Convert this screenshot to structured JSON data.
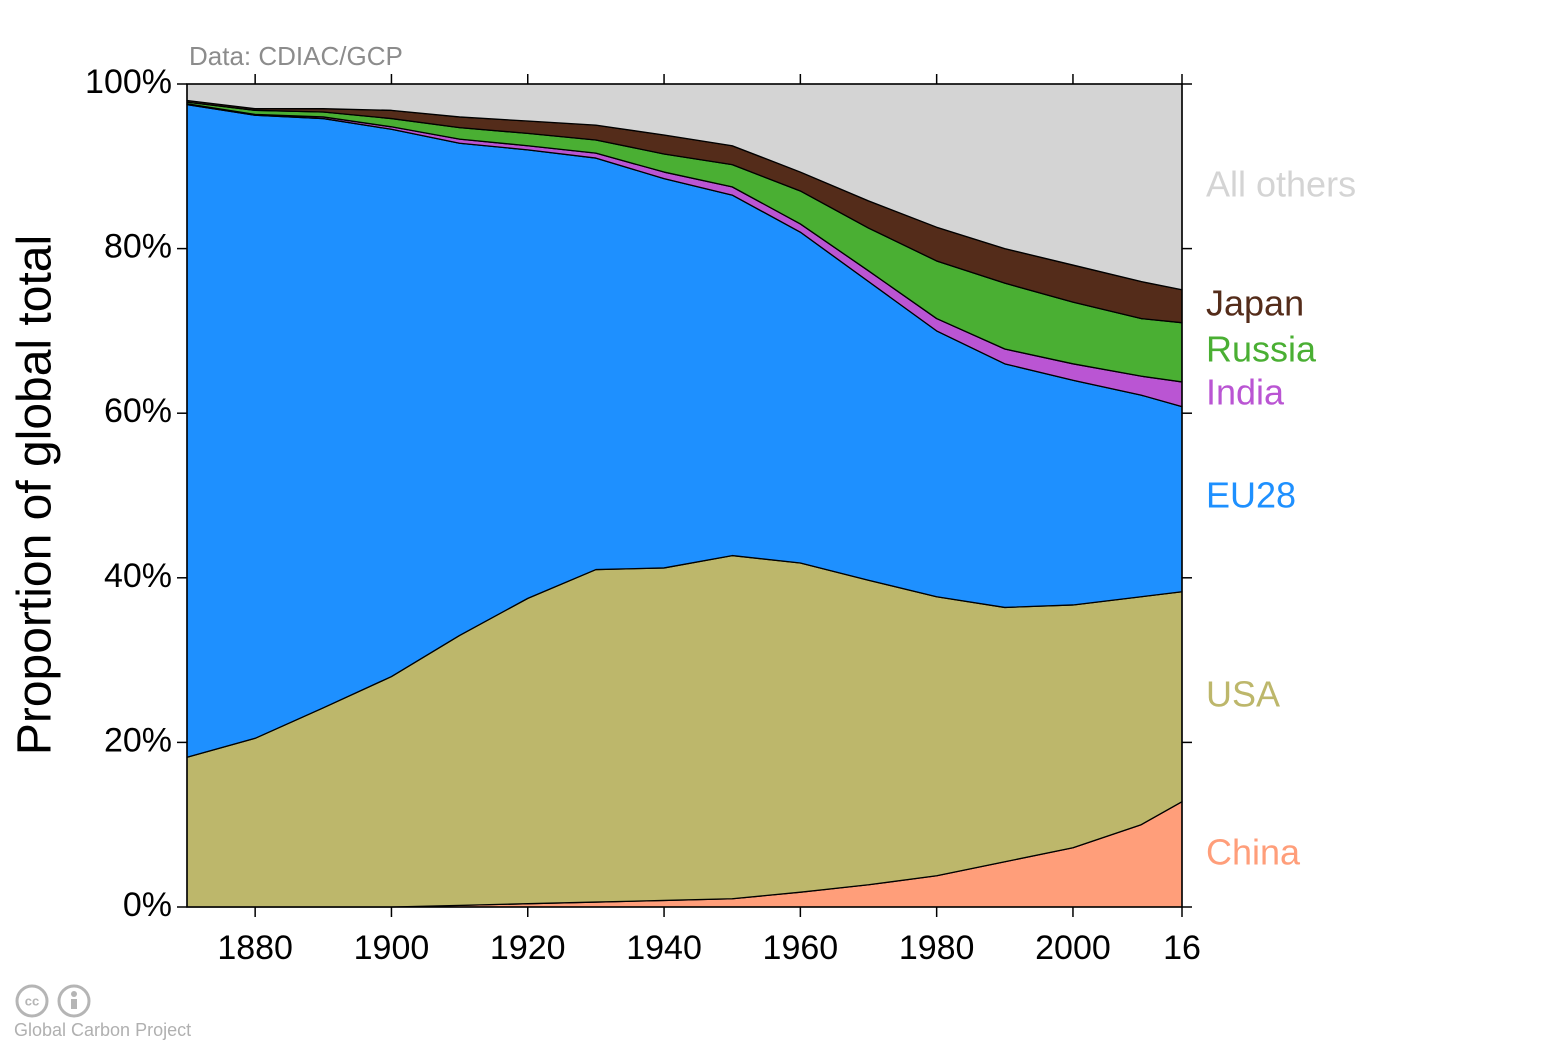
{
  "chart_data": {
    "type": "stacked-area",
    "note": "Data: CDIAC/GCP",
    "ylabel": "Proportion of global total",
    "credit": "Global Carbon Project",
    "x": [
      1870,
      1880,
      1890,
      1900,
      1910,
      1920,
      1930,
      1940,
      1950,
      1960,
      1970,
      1980,
      1990,
      2000,
      2010,
      2016
    ],
    "xlim": [
      1870,
      2016
    ],
    "xticks": [
      1880,
      1900,
      1920,
      1940,
      1960,
      1980,
      2000,
      {
        "value": 2016,
        "label": "16"
      }
    ],
    "ylim": [
      0,
      100
    ],
    "yticks": [
      {
        "value": 0,
        "label": "0%"
      },
      {
        "value": 20,
        "label": "20%"
      },
      {
        "value": 40,
        "label": "40%"
      },
      {
        "value": 60,
        "label": "60%"
      },
      {
        "value": 80,
        "label": "80%"
      },
      {
        "value": 100,
        "label": "100%"
      }
    ],
    "series": [
      {
        "name": "China",
        "color": "#ff9e7a",
        "values": [
          0,
          0,
          0,
          0,
          0.2,
          0.4,
          0.6,
          0.8,
          1.0,
          1.8,
          2.7,
          3.8,
          5.5,
          7.2,
          10,
          12.8
        ]
      },
      {
        "name": "USA",
        "color": "#bdb76b",
        "values": [
          18.2,
          20.5,
          24.2,
          28,
          32.8,
          37.1,
          40.4,
          40.4,
          41.7,
          40,
          37,
          33.9,
          30.9,
          29.5,
          27.7,
          25.5
        ]
      },
      {
        "name": "EU28",
        "color": "#1e90ff",
        "values": [
          79.3,
          75.7,
          71.6,
          66.5,
          59.8,
          54.5,
          50,
          47.3,
          43.8,
          40.2,
          36.3,
          32.3,
          29.6,
          27.3,
          24.5,
          22.5
        ]
      },
      {
        "name": "India",
        "color": "#ba55d3",
        "values": [
          0.1,
          0.1,
          0.2,
          0.3,
          0.5,
          0.5,
          0.6,
          0.8,
          1.0,
          1.0,
          1.3,
          1.5,
          1.8,
          2.0,
          2.3,
          3.0
        ]
      },
      {
        "name": "Russia",
        "color": "#4aaf33",
        "values": [
          0.2,
          0.5,
          0.6,
          1.0,
          1.4,
          1.5,
          1.6,
          2.2,
          2.7,
          4.0,
          5.2,
          7.0,
          8.0,
          7.5,
          7.0,
          7.2
        ]
      },
      {
        "name": "Japan",
        "color": "#542c1a",
        "values": [
          0.2,
          0.2,
          0.4,
          1.0,
          1.3,
          1.5,
          1.8,
          2.3,
          2.3,
          2.3,
          3.3,
          4.1,
          4.2,
          4.5,
          4.5,
          4.0
        ]
      },
      {
        "name": "All others",
        "color": "#d4d4d4",
        "values": [
          2,
          3,
          3,
          3.2,
          4,
          4.5,
          5,
          6.2,
          7.5,
          10.7,
          14.2,
          17.4,
          20,
          22,
          24,
          25
        ]
      }
    ]
  }
}
